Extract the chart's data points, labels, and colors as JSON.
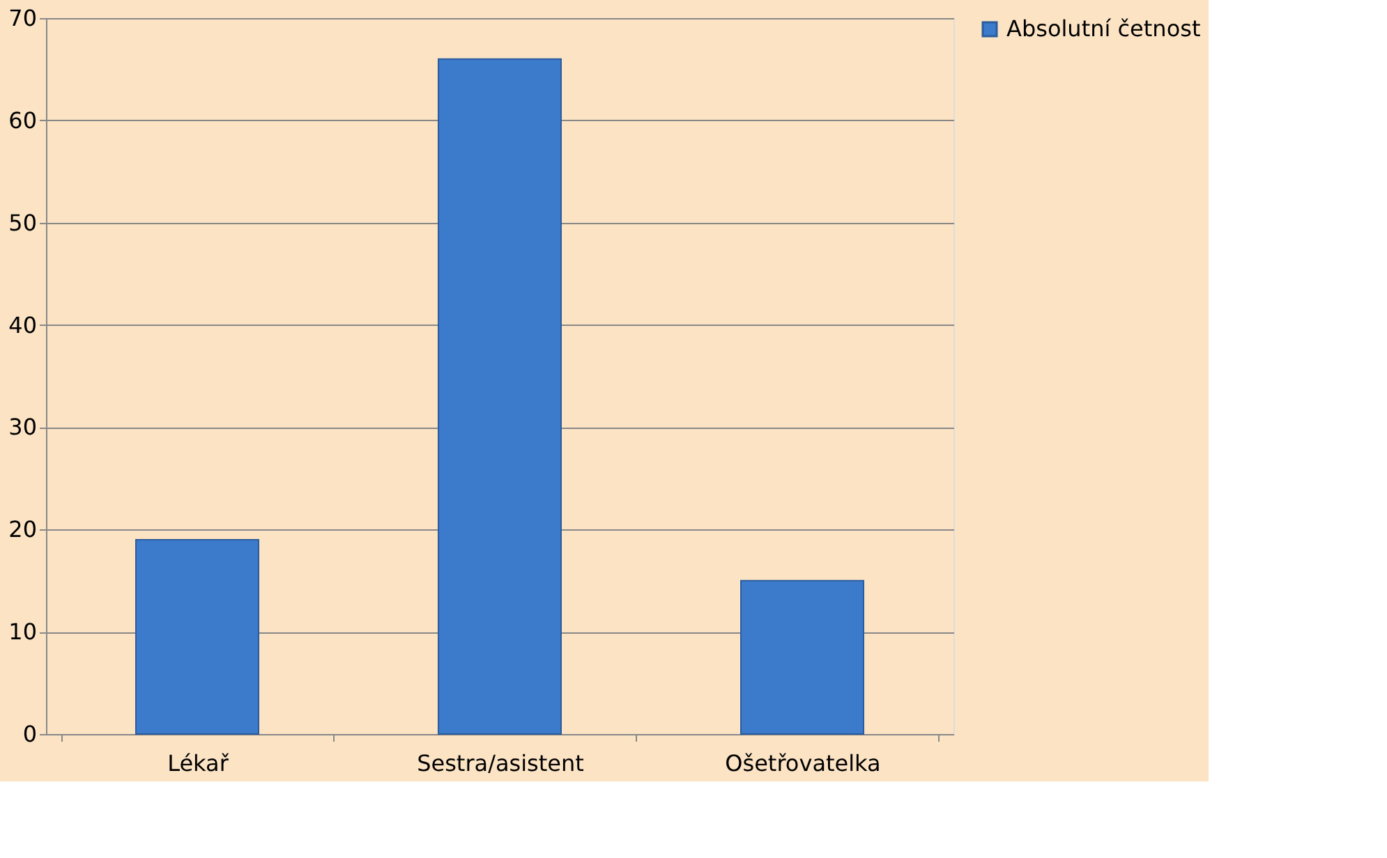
{
  "chart_data": {
    "type": "bar",
    "categories": [
      "Lékař",
      "Sestra/asistent",
      "Ošetřovatelka"
    ],
    "series": [
      {
        "name": "Absolutní četnost",
        "color": "#3c7acb",
        "values": [
          19,
          66,
          15
        ]
      }
    ],
    "ylim": [
      0,
      70
    ],
    "yticks": [
      0,
      10,
      20,
      30,
      40,
      50,
      60,
      70
    ],
    "grid": "y",
    "legend": "right"
  }
}
